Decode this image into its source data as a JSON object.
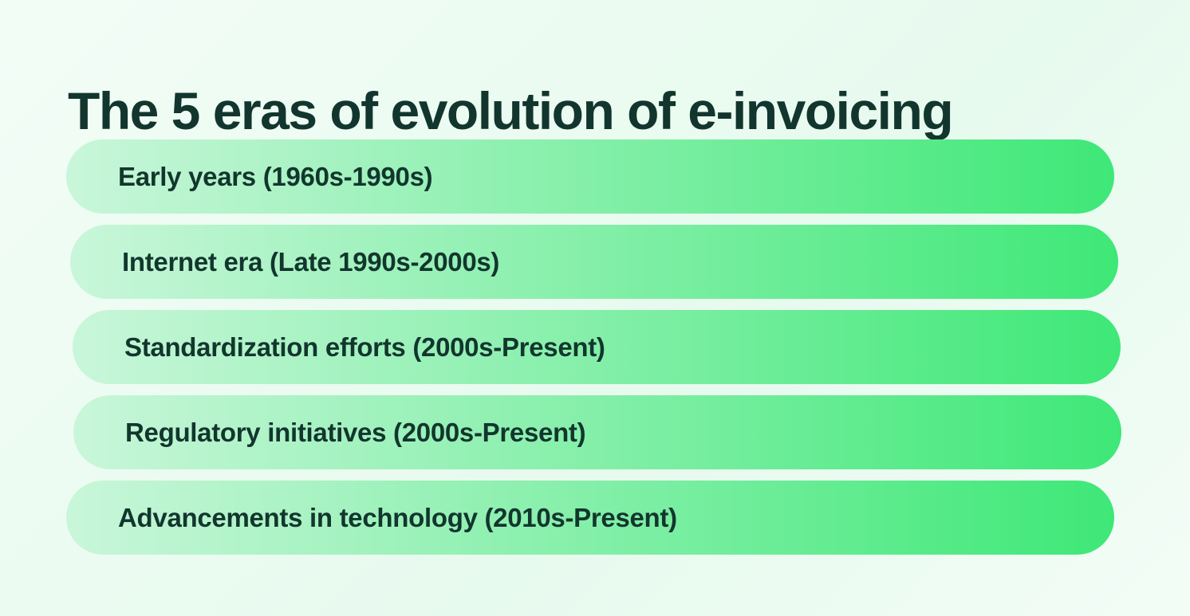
{
  "title": {
    "text": "The 5 eras of evolution of e-invoicing"
  },
  "eras": [
    {
      "label": "Early years (1960s-1990s)"
    },
    {
      "label": "Internet era (Late 1990s-2000s)"
    },
    {
      "label": "Standardization efforts (2000s-Present)"
    },
    {
      "label": "Regulatory initiatives (2000s-Present)"
    },
    {
      "label": "Advancements in technology (2010s-Present)"
    }
  ],
  "theme": {
    "background": "#e7faee",
    "background_light": "#f2fdf6",
    "bar_gradient_start": "#c9f6da",
    "bar_gradient_end": "#3ee877",
    "text_color": "#12362e"
  }
}
